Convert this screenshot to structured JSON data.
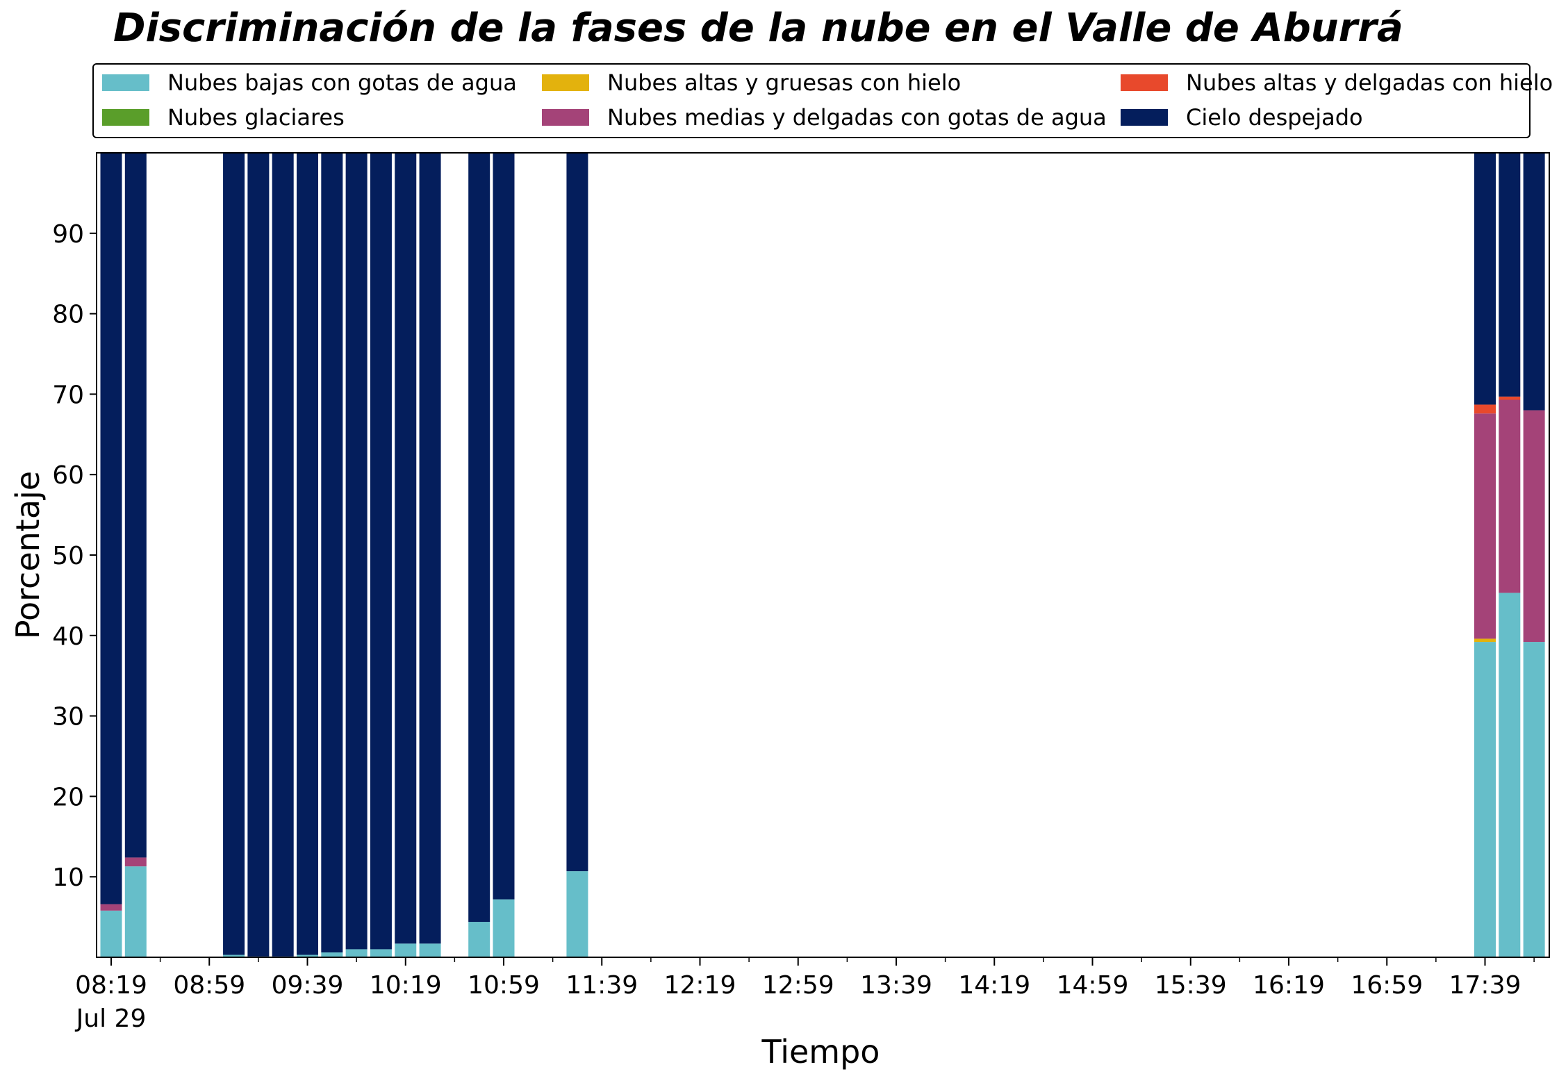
{
  "chart_data": {
    "type": "bar",
    "stacked": true,
    "title": "Discriminación de la fases de la nube en el Valle de Aburrá",
    "xlabel": "Tiempo",
    "ylabel": "Porcentaje",
    "ylim": [
      0,
      100
    ],
    "yticks": [
      10,
      20,
      30,
      40,
      50,
      60,
      70,
      80,
      90
    ],
    "x_tick_labels": [
      "08:19",
      "08:59",
      "09:39",
      "10:19",
      "10:59",
      "11:39",
      "12:19",
      "12:59",
      "13:39",
      "14:19",
      "14:59",
      "15:39",
      "16:19",
      "16:59",
      "17:39"
    ],
    "x_date_label": "Jul 29",
    "legend_position": "top",
    "grid": false,
    "x_times": [
      "08:19",
      "08:29",
      "09:09",
      "09:19",
      "09:29",
      "09:39",
      "09:49",
      "09:59",
      "10:09",
      "10:19",
      "10:29",
      "10:49",
      "10:59",
      "11:29",
      "17:39",
      "17:49",
      "17:59"
    ],
    "series": [
      {
        "name": "Nubes bajas con gotas de agua",
        "color": "#66bec9",
        "values": [
          5.8,
          11.3,
          0.3,
          0.1,
          0.1,
          0.3,
          0.6,
          1.0,
          1.0,
          1.7,
          1.7,
          4.4,
          7.2,
          10.7,
          39.2,
          45.3,
          39.2
        ]
      },
      {
        "name": "Nubes glaciares",
        "color": "#5a9e2a",
        "values": [
          0,
          0,
          0,
          0,
          0,
          0,
          0,
          0,
          0,
          0,
          0,
          0,
          0,
          0,
          0,
          0,
          0
        ]
      },
      {
        "name": "Nubes altas y gruesas con hielo",
        "color": "#e3b20d",
        "values": [
          0,
          0,
          0,
          0,
          0,
          0,
          0,
          0,
          0,
          0,
          0,
          0,
          0,
          0,
          0.4,
          0,
          0
        ]
      },
      {
        "name": "Nubes medias y delgadas con gotas de agua",
        "color": "#a44378",
        "values": [
          0.8,
          1.1,
          0,
          0,
          0,
          0,
          0,
          0,
          0,
          0,
          0,
          0,
          0,
          0,
          28.0,
          24.0,
          28.8
        ]
      },
      {
        "name": "Nubes altas y delgadas con hielo",
        "color": "#e8492c",
        "values": [
          0,
          0,
          0,
          0,
          0,
          0,
          0,
          0,
          0,
          0,
          0,
          0,
          0,
          0,
          1.1,
          0.4,
          0
        ]
      },
      {
        "name": "Cielo despejado",
        "color": "#041e5c",
        "values": [
          93.4,
          87.6,
          99.7,
          99.9,
          99.9,
          99.7,
          99.4,
          99.0,
          99.0,
          98.3,
          98.3,
          95.6,
          92.8,
          89.3,
          31.3,
          30.3,
          32.0
        ]
      }
    ]
  }
}
